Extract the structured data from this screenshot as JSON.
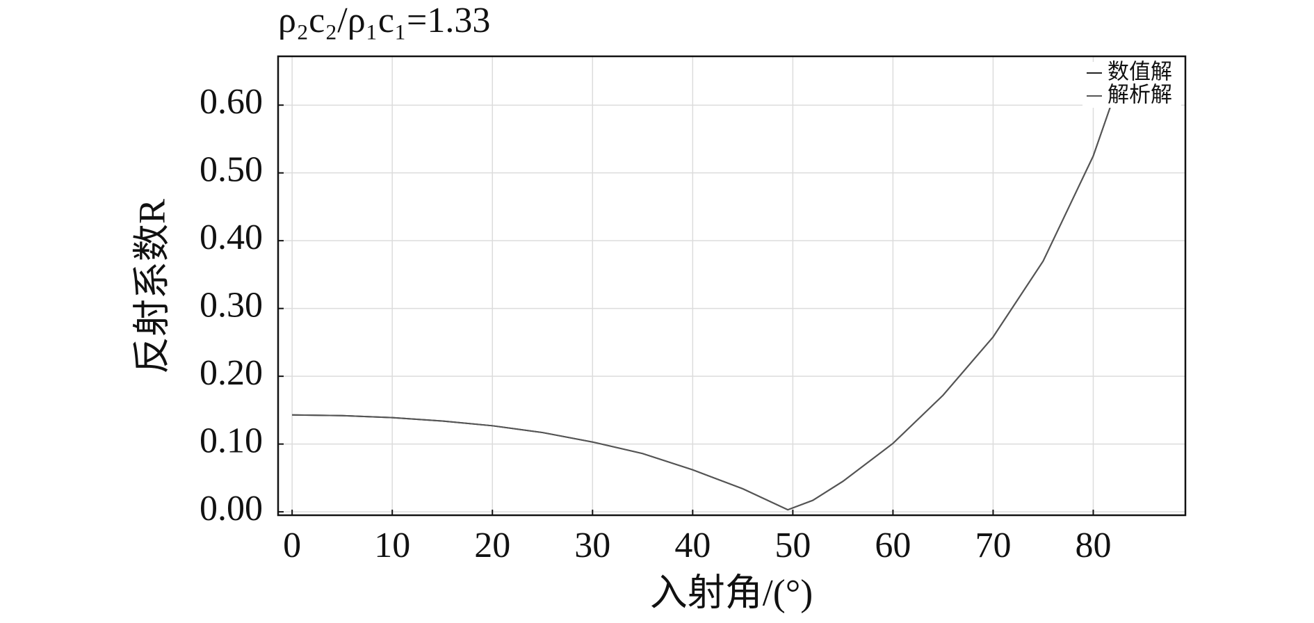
{
  "chart_data": {
    "type": "line",
    "title": "ρ₂c₂/ρ₁c₁=1.33",
    "x_label": "入射角/(°)",
    "y_label": "反射系数R",
    "x": [
      0,
      5,
      10,
      15,
      20,
      25,
      30,
      35,
      40,
      45,
      49.5,
      52,
      55,
      60,
      65,
      70,
      75,
      80,
      82
    ],
    "series": [
      {
        "name": "数值解",
        "color": "#222222",
        "values": [
          0.143,
          0.142,
          0.139,
          0.134,
          0.127,
          0.117,
          0.103,
          0.086,
          0.062,
          0.034,
          0.003,
          0.017,
          0.045,
          0.101,
          0.172,
          0.258,
          0.37,
          0.525,
          0.61
        ]
      },
      {
        "name": "解析解",
        "color": "#555555",
        "values": [
          0.143,
          0.142,
          0.139,
          0.134,
          0.127,
          0.117,
          0.103,
          0.086,
          0.062,
          0.034,
          0.003,
          0.017,
          0.045,
          0.101,
          0.172,
          0.258,
          0.37,
          0.525,
          0.61
        ]
      }
    ],
    "xlim": [
      -1.4,
      89.2
    ],
    "ylim": [
      -0.005,
      0.672
    ],
    "xticks": [
      0,
      10,
      20,
      30,
      40,
      50,
      60,
      70,
      80
    ],
    "yticks": [
      {
        "value": 0,
        "label": "0.00"
      },
      {
        "value": 0.1,
        "label": "0.10"
      },
      {
        "value": 0.2,
        "label": "0.20"
      },
      {
        "value": 0.3,
        "label": "0.30"
      },
      {
        "value": 0.4,
        "label": "0.40"
      },
      {
        "value": 0.5,
        "label": "0.50"
      },
      {
        "value": 0.6,
        "label": "0.60"
      }
    ],
    "grid": true,
    "legend": "upper right"
  }
}
